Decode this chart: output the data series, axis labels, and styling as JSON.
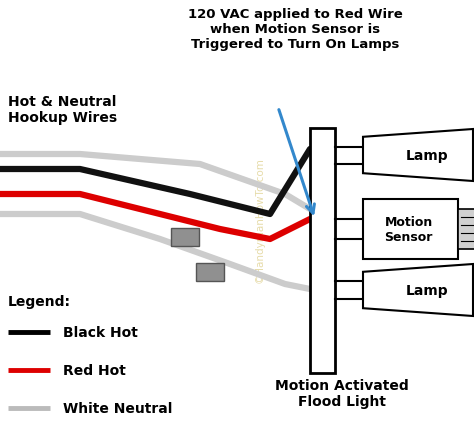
{
  "bg_color": "#ffffff",
  "annotation_text": "120 VAC applied to Red Wire\nwhen Motion Sensor is\nTriggered to Turn On Lamps",
  "hookup_label": "Hot & Neutral\nHookup Wires",
  "legend_title": "Legend:",
  "legend_items": [
    {
      "label": "Black Hot",
      "color": "#000000"
    },
    {
      "label": "Red Hot",
      "color": "#dd0000"
    },
    {
      "label": "White Neutral",
      "color": "#bbbbbb"
    }
  ],
  "flood_light_label": "Motion Activated\nFlood Light",
  "lamp_label": "Lamp",
  "sensor_label": "Motion\nSensor",
  "watermark": "©HandymanHowTo.com",
  "wire_black": "#111111",
  "wire_red": "#dd0000",
  "wire_white": "#cccccc",
  "connector_color": "#909090",
  "arrow_color": "#3388cc",
  "box_color": "#ffffff",
  "box_edge": "#000000"
}
